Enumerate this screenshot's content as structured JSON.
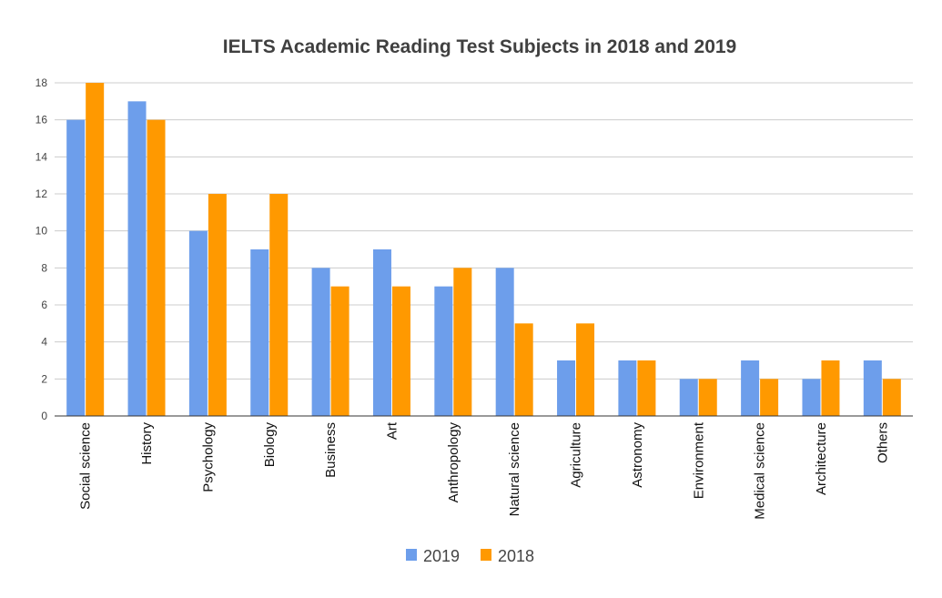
{
  "chart_data": {
    "type": "bar",
    "title": "IELTS Academic Reading Test Subjects in 2018 and 2019",
    "xlabel": "",
    "ylabel": "",
    "ylim": [
      0,
      18
    ],
    "yticks": [
      "0",
      "2",
      "4",
      "6",
      "8",
      "10",
      "12",
      "14",
      "16",
      "18"
    ],
    "categories": [
      "Social science",
      "History",
      "Psychology",
      "Biology",
      "Business",
      "Art",
      "Anthropology",
      "Natural science",
      "Agriculture",
      "Astronomy",
      "Environment",
      "Medical science",
      "Architecture",
      "Others"
    ],
    "series": [
      {
        "name": "2019",
        "color": "#6d9eeb",
        "values": [
          16,
          17,
          10,
          9,
          8,
          9,
          7,
          8,
          3,
          3,
          2,
          3,
          2,
          3
        ]
      },
      {
        "name": "2018",
        "color": "#ff9900",
        "values": [
          18,
          16,
          12,
          12,
          7,
          7,
          8,
          5,
          5,
          3,
          2,
          2,
          3,
          2
        ]
      }
    ],
    "grid": true,
    "legend_position": "bottom"
  }
}
